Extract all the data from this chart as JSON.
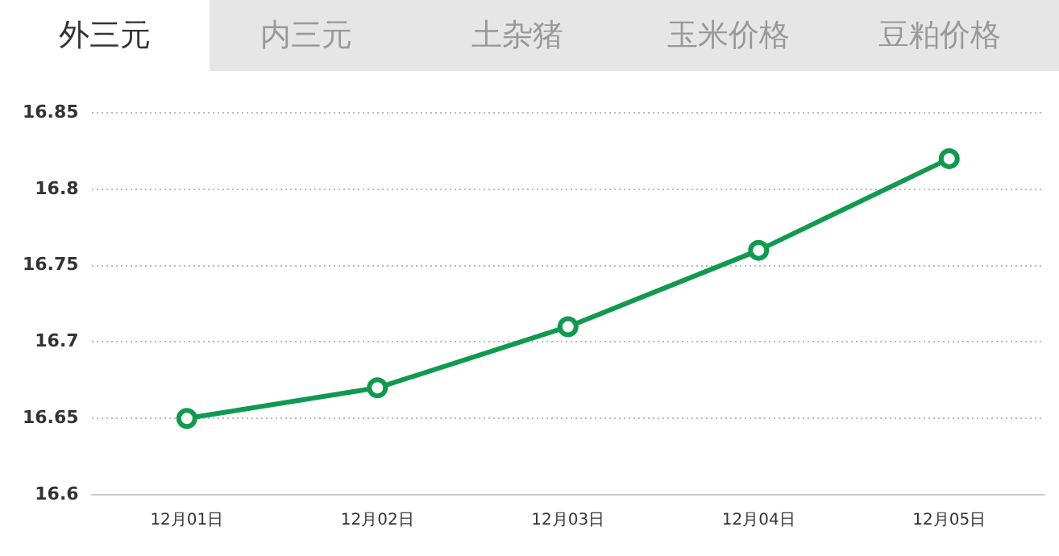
{
  "chart_data": {
    "type": "line",
    "annotations": [
      "外三元",
      "内三元",
      "土杂猪",
      "玉米价格",
      "豆粕价格"
    ],
    "categories": [
      "12月01日",
      "12月02日",
      "12月03日",
      "12月04日",
      "12月05日"
    ],
    "series": [
      {
        "color": "#109a4f",
        "values": [
          16.65,
          16.67,
          16.71,
          16.76,
          16.82
        ]
      }
    ],
    "ylim": [
      16.6,
      16.85
    ],
    "yticks": [
      16.6,
      16.65,
      16.7,
      16.75,
      16.8,
      16.85
    ],
    "grid": "y",
    "marker": "circle",
    "line_style": "solid",
    "legend": false
  }
}
